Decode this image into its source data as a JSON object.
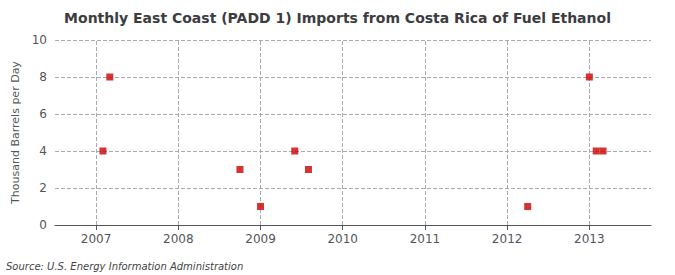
{
  "chart_data": {
    "type": "scatter",
    "title": "Monthly East Coast (PADD 1) Imports from Costa Rica of Fuel Ethanol",
    "ylabel": "Thousand Barrels per Day",
    "annotations": [
      "Source: U.S. Energy Information Administration"
    ],
    "x": [
      2007.0833,
      2007.1667,
      2008.75,
      2009.0,
      2009.4167,
      2009.5833,
      2012.25,
      2013.0,
      2013.0833,
      2013.1667
    ],
    "values": [
      4,
      8,
      3,
      1,
      4,
      3,
      1,
      8,
      4,
      4
    ],
    "color": "#cc0000",
    "marker": "square",
    "xlim": [
      2006.5,
      2013.75
    ],
    "xticks": [
      2007,
      2008,
      2009,
      2010,
      2011,
      2012,
      2013
    ],
    "ylim": [
      0,
      10
    ],
    "yticks": [
      0,
      2,
      4,
      6,
      8,
      10
    ],
    "grid": true
  }
}
